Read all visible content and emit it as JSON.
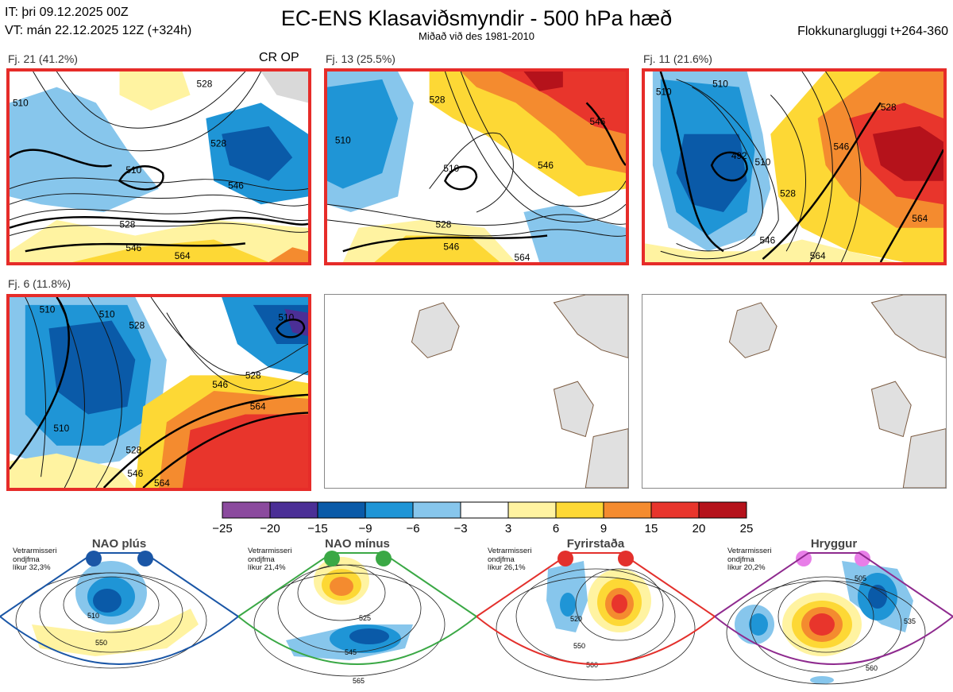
{
  "header": {
    "initial_time": "IT: þri 09.12.2025 00Z",
    "valid_time": "VT: mán 22.12.2025 12Z  (+324h)",
    "title": "EC-ENS Klasaviðsmyndir - 500 hPa hæð",
    "subtitle": "Miðað við des 1981-2010",
    "cluster_window": "Flokkunargluggi t+264-360"
  },
  "clusters": [
    {
      "label": "Fj. 21 (41.2%)",
      "extra": "CR OP",
      "selected": true,
      "contour_labels": [
        "510",
        "528",
        "528",
        "510",
        "546",
        "528",
        "546",
        "564"
      ]
    },
    {
      "label": "Fj. 13 (25.5%)",
      "extra": "",
      "selected": true,
      "contour_labels": [
        "528",
        "510",
        "546",
        "510",
        "546",
        "528",
        "546",
        "564"
      ]
    },
    {
      "label": "Fj. 11 (21.6%)",
      "extra": "",
      "selected": true,
      "contour_labels": [
        "510",
        "510",
        "528",
        "492",
        "510",
        "528",
        "546",
        "564",
        "546",
        "564"
      ]
    },
    {
      "label": "Fj. 6 (11.8%)",
      "extra": "",
      "selected": true,
      "contour_labels": [
        "510",
        "510",
        "528",
        "510",
        "528",
        "546",
        "564",
        "510",
        "528",
        "546",
        "564"
      ]
    },
    {
      "label": "",
      "extra": "",
      "selected": false,
      "contour_labels": []
    },
    {
      "label": "",
      "extra": "",
      "selected": false,
      "contour_labels": []
    }
  ],
  "colorbar": {
    "ticks": [
      "−25",
      "−20",
      "−15",
      "−9",
      "−6",
      "−3",
      "3",
      "6",
      "9",
      "15",
      "20",
      "25"
    ],
    "colors": [
      "#8b4a9e",
      "#4b2f96",
      "#0a5aa8",
      "#1f95d6",
      "#87c6ec",
      "#ffffff",
      "#fff3a1",
      "#fdd835",
      "#f48b2f",
      "#e8352c",
      "#b5121b"
    ]
  },
  "regimes": [
    {
      "name": "NAO plús",
      "season": "Vetrarmisseri",
      "months": "ondjfma",
      "probability": "líkur 32,3%",
      "color": "#1a56a6",
      "contour_labels": [
        "510",
        "550"
      ]
    },
    {
      "name": "NAO mínus",
      "season": "Vetrarmisseri",
      "months": "ondjfma",
      "probability": "líkur 21,4%",
      "color": "#3aa845",
      "contour_labels": [
        "525",
        "545",
        "565"
      ]
    },
    {
      "name": "Fyrirstaða",
      "season": "Vetrarmisseri",
      "months": "ondjfma",
      "probability": "líkur 26,1%",
      "color": "#e3302c",
      "contour_labels": [
        "520",
        "550",
        "560"
      ]
    },
    {
      "name": "Hryggur",
      "season": "Vetrarmisseri",
      "months": "ondjfma",
      "probability": "líkur 20,2%",
      "color": "#8e2a8e",
      "contour_labels": [
        "505",
        "535",
        "560"
      ]
    }
  ],
  "chart_data": {
    "type": "heatmap",
    "title": "EC-ENS Klasaviðsmyndir - 500 hPa hæð",
    "variable": "500 hPa geopotential height (dam) with anomaly shading",
    "anomaly_scale": [
      -25,
      -20,
      -15,
      -9,
      -6,
      -3,
      3,
      6,
      9,
      15,
      20,
      25
    ],
    "series": [
      {
        "name": "Fj. 21",
        "probability_pct": 41.2
      },
      {
        "name": "Fj. 13",
        "probability_pct": 25.5
      },
      {
        "name": "Fj. 11",
        "probability_pct": 21.6
      },
      {
        "name": "Fj. 6",
        "probability_pct": 11.8
      }
    ],
    "regime_probabilities_pct": [
      {
        "name": "NAO plús",
        "value": 32.3
      },
      {
        "name": "NAO mínus",
        "value": 21.4
      },
      {
        "name": "Fyrirstaða",
        "value": 26.1
      },
      {
        "name": "Hryggur",
        "value": 20.2
      }
    ]
  }
}
